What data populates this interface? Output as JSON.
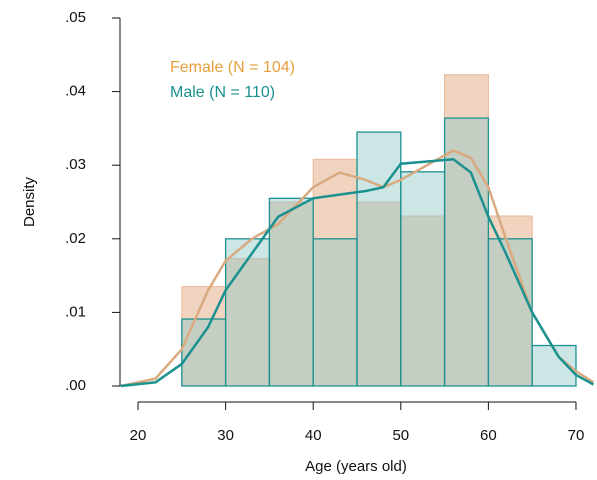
{
  "chart_data": {
    "type": "histogram",
    "x_label": "Age (years old)",
    "y_label": "Density",
    "bins": [
      25,
      30,
      35,
      40,
      45,
      50,
      55,
      60,
      65,
      70
    ],
    "series": [
      {
        "name": "Female (N = 104)",
        "color": "#e69f3c",
        "fill": "#e8b896",
        "curve_color": "#d9aa80",
        "values": [
          0.0135,
          0.0173,
          0.025,
          0.0308,
          0.025,
          0.0231,
          0.0423,
          0.0231,
          0
        ],
        "curve": [
          0,
          0.001,
          0.005,
          0.013,
          0.017,
          0.02,
          0.022,
          0.027,
          0.029,
          0.028,
          0.027,
          0.028,
          0.03,
          0.032,
          0.031,
          0.027,
          0.02,
          0.01,
          0.004,
          0.002,
          0.0005
        ]
      },
      {
        "name": "Male (N = 110)",
        "color": "#1b9190",
        "fill": "#8ec7c7",
        "curve_color": "#1b9190",
        "values": [
          0.0091,
          0.02,
          0.0255,
          0.02,
          0.0345,
          0.0291,
          0.0364,
          0.02,
          0.0055
        ],
        "curve": [
          0,
          0.0005,
          0.003,
          0.008,
          0.013,
          0.018,
          0.023,
          0.0255,
          0.026,
          0.0265,
          0.027,
          0.0302,
          0.0305,
          0.0308,
          0.029,
          0.023,
          0.018,
          0.01,
          0.004,
          0.0015,
          0.0002
        ]
      }
    ],
    "curve_x": [
      18,
      22,
      25,
      28,
      30,
      33,
      36,
      40,
      43,
      46,
      48,
      50,
      53,
      56,
      58,
      60,
      62,
      65,
      68,
      70,
      72
    ],
    "xlim": [
      18,
      72
    ],
    "ylim": [
      0,
      0.05
    ],
    "xticks": [
      20,
      30,
      40,
      50,
      60,
      70
    ],
    "yticks": [
      {
        "value": 0,
        "label": ".00"
      },
      {
        "value": 0.01,
        "label": ".01"
      },
      {
        "value": 0.02,
        "label": ".02"
      },
      {
        "value": 0.03,
        "label": ".03"
      },
      {
        "value": 0.04,
        "label": ".04"
      },
      {
        "value": 0.05,
        "label": ".05"
      }
    ]
  }
}
